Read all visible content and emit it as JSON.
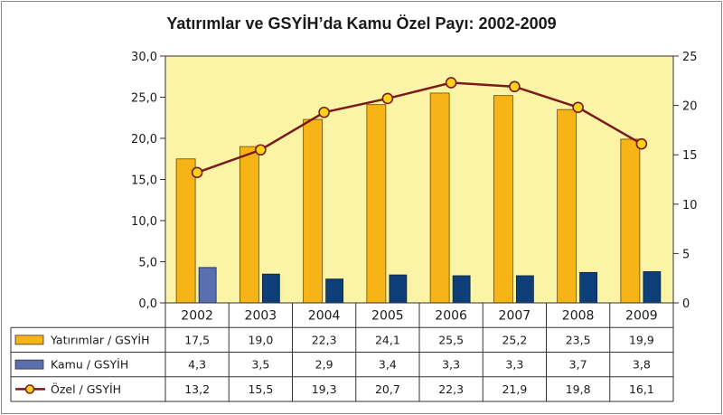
{
  "chart_data": {
    "type": "bar",
    "title": "Yatırımlar ve GSYİH’da Kamu Özel Payı: 2002-2009",
    "categories": [
      "2002",
      "2003",
      "2004",
      "2005",
      "2006",
      "2007",
      "2008",
      "2009"
    ],
    "series": [
      {
        "name": "Yatırımlar / GSYİH",
        "type": "bar",
        "axis": "left",
        "color": "#f7b416",
        "values": [
          17.5,
          19.0,
          22.3,
          24.1,
          25.5,
          25.2,
          23.5,
          19.9
        ],
        "labels": [
          "17,5",
          "19,0",
          "22,3",
          "24,1",
          "25,5",
          "25,2",
          "23,5",
          "19,9"
        ]
      },
      {
        "name": "Kamu / GSYİH",
        "type": "bar",
        "axis": "left",
        "color": "#0f3f78",
        "first_color": "#5a6fb0",
        "values": [
          4.3,
          3.5,
          2.9,
          3.4,
          3.3,
          3.3,
          3.7,
          3.8
        ],
        "labels": [
          "4,3",
          "3,5",
          "2,9",
          "3,4",
          "3,3",
          "3,3",
          "3,7",
          "3,8"
        ]
      },
      {
        "name": "Özel / GSYİH",
        "type": "line",
        "axis": "right",
        "color": "#7a1a1a",
        "marker_color": "#ffd21a",
        "values": [
          13.2,
          15.5,
          19.3,
          20.7,
          22.3,
          21.9,
          19.8,
          16.1
        ],
        "labels": [
          "13,2",
          "15,5",
          "19,3",
          "20,7",
          "22,3",
          "21,9",
          "19,8",
          "16,1"
        ]
      }
    ],
    "y_left": {
      "ylim": [
        0,
        30
      ],
      "ticks": [
        0,
        5,
        10,
        15,
        20,
        25,
        30
      ],
      "tick_labels": [
        "0,0",
        "5,0",
        "10,0",
        "15,0",
        "20,0",
        "25,0",
        "30,0"
      ]
    },
    "y_right": {
      "ylim": [
        0,
        25
      ],
      "ticks": [
        0,
        5,
        10,
        15,
        20,
        25
      ],
      "tick_labels": [
        "0",
        "5",
        "10",
        "15",
        "20",
        "25"
      ]
    },
    "plot_background": "#fbf3a6",
    "grid": false,
    "legend": "data-table"
  }
}
